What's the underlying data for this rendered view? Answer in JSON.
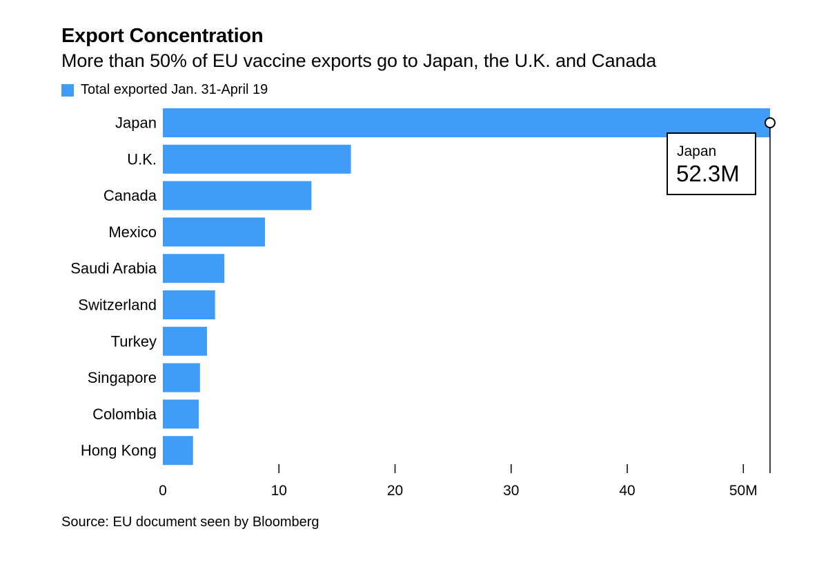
{
  "header": {
    "title": "Export Concentration",
    "subtitle": "More than 50% of EU vaccine exports go to Japan, the U.K. and Canada"
  },
  "footer": {
    "source": "Source: EU document seen by Bloomberg"
  },
  "colors": {
    "bar": "#409cf7",
    "axis": "#000000"
  },
  "chart_data": {
    "type": "bar",
    "orientation": "horizontal",
    "title": "Export Concentration",
    "subtitle": "More than 50% of EU vaccine exports go to Japan, the U.K. and Canada",
    "categories": [
      "Japan",
      "U.K.",
      "Canada",
      "Mexico",
      "Saudi Arabia",
      "Switzerland",
      "Turkey",
      "Singapore",
      "Colombia",
      "Hong Kong"
    ],
    "series": [
      {
        "name": "Total exported Jan. 31-April 19",
        "values": [
          52.3,
          16.2,
          12.8,
          8.8,
          5.3,
          4.5,
          3.8,
          3.2,
          3.1,
          2.6
        ]
      }
    ],
    "xlim": [
      0,
      52.3
    ],
    "xticks": [
      0,
      10,
      20,
      30,
      40,
      50
    ],
    "xtick_labels": [
      "0",
      "10",
      "20",
      "30",
      "40",
      "50M"
    ],
    "grid": false,
    "legend": "top-left",
    "tooltip": {
      "category": "Japan",
      "label": "52.3M"
    }
  }
}
